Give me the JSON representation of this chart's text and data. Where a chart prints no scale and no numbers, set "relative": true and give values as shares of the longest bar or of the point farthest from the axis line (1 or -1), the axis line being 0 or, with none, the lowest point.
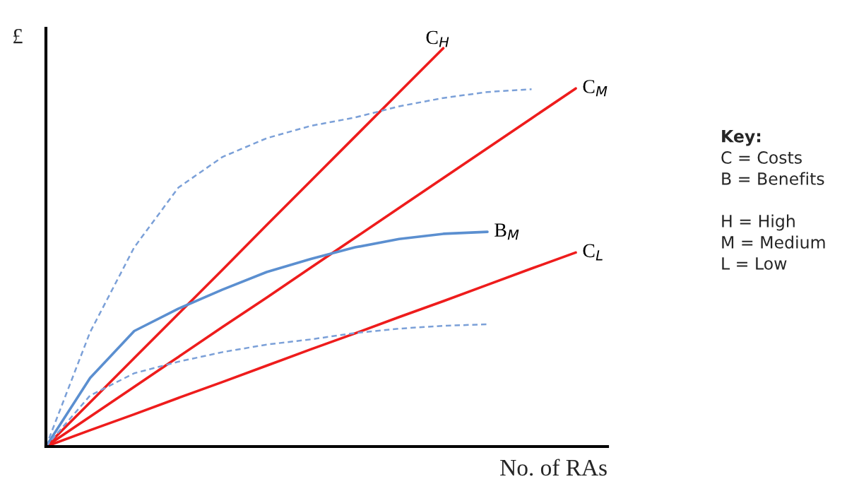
{
  "chart_data": {
    "type": "line",
    "relative": true,
    "xlabel": "No. of RAs",
    "ylabel": "£",
    "categories": [
      null,
      null,
      null,
      null,
      null,
      null,
      null,
      null,
      null,
      null,
      null,
      null,
      null
    ],
    "series": [
      {
        "name": "C$_{H}$",
        "color": "#ee1c1c",
        "line_style": "solid",
        "values": [
          0,
          0.111,
          0.222,
          0.333,
          0.444,
          0.556,
          0.667,
          0.778,
          0.889,
          1,
          null,
          null,
          null
        ]
      },
      {
        "name": "C$_{M}$",
        "color": "#ee1c1c",
        "line_style": "solid",
        "values": [
          0,
          0.075,
          0.15,
          0.225,
          0.3,
          0.374,
          0.449,
          0.524,
          0.599,
          0.674,
          0.749,
          0.824,
          0.899
        ]
      },
      {
        "name": "C$_{L}$",
        "color": "#ee1c1c",
        "line_style": "solid",
        "values": [
          0,
          0.041,
          0.081,
          0.122,
          0.162,
          0.203,
          0.244,
          0.284,
          0.325,
          0.365,
          0.406,
          0.447,
          0.487
        ]
      },
      {
        "name": "B$_{M}$",
        "color": "#5b8fd0",
        "line_style": "solid",
        "values": [
          0,
          0.172,
          0.29,
          0.346,
          0.394,
          0.438,
          0.471,
          0.5,
          0.521,
          0.534,
          0.539,
          null,
          null
        ]
      },
      {
        "color": "#7ba0d8",
        "line_style": "dashed",
        "values": [
          0,
          0.287,
          0.5,
          0.65,
          0.727,
          0.774,
          0.805,
          0.826,
          0.854,
          0.875,
          0.89,
          0.897,
          null
        ]
      },
      {
        "color": "#7ba0d8",
        "line_style": "dashed",
        "values": [
          0,
          0.128,
          0.184,
          0.213,
          0.237,
          0.256,
          0.269,
          0.285,
          0.296,
          0.303,
          0.307,
          null,
          null
        ]
      }
    ],
    "annotations": [
      "Key:",
      "C = Costs",
      "B = Benefits",
      "H = High",
      "M = Medium",
      "L = Low"
    ]
  }
}
